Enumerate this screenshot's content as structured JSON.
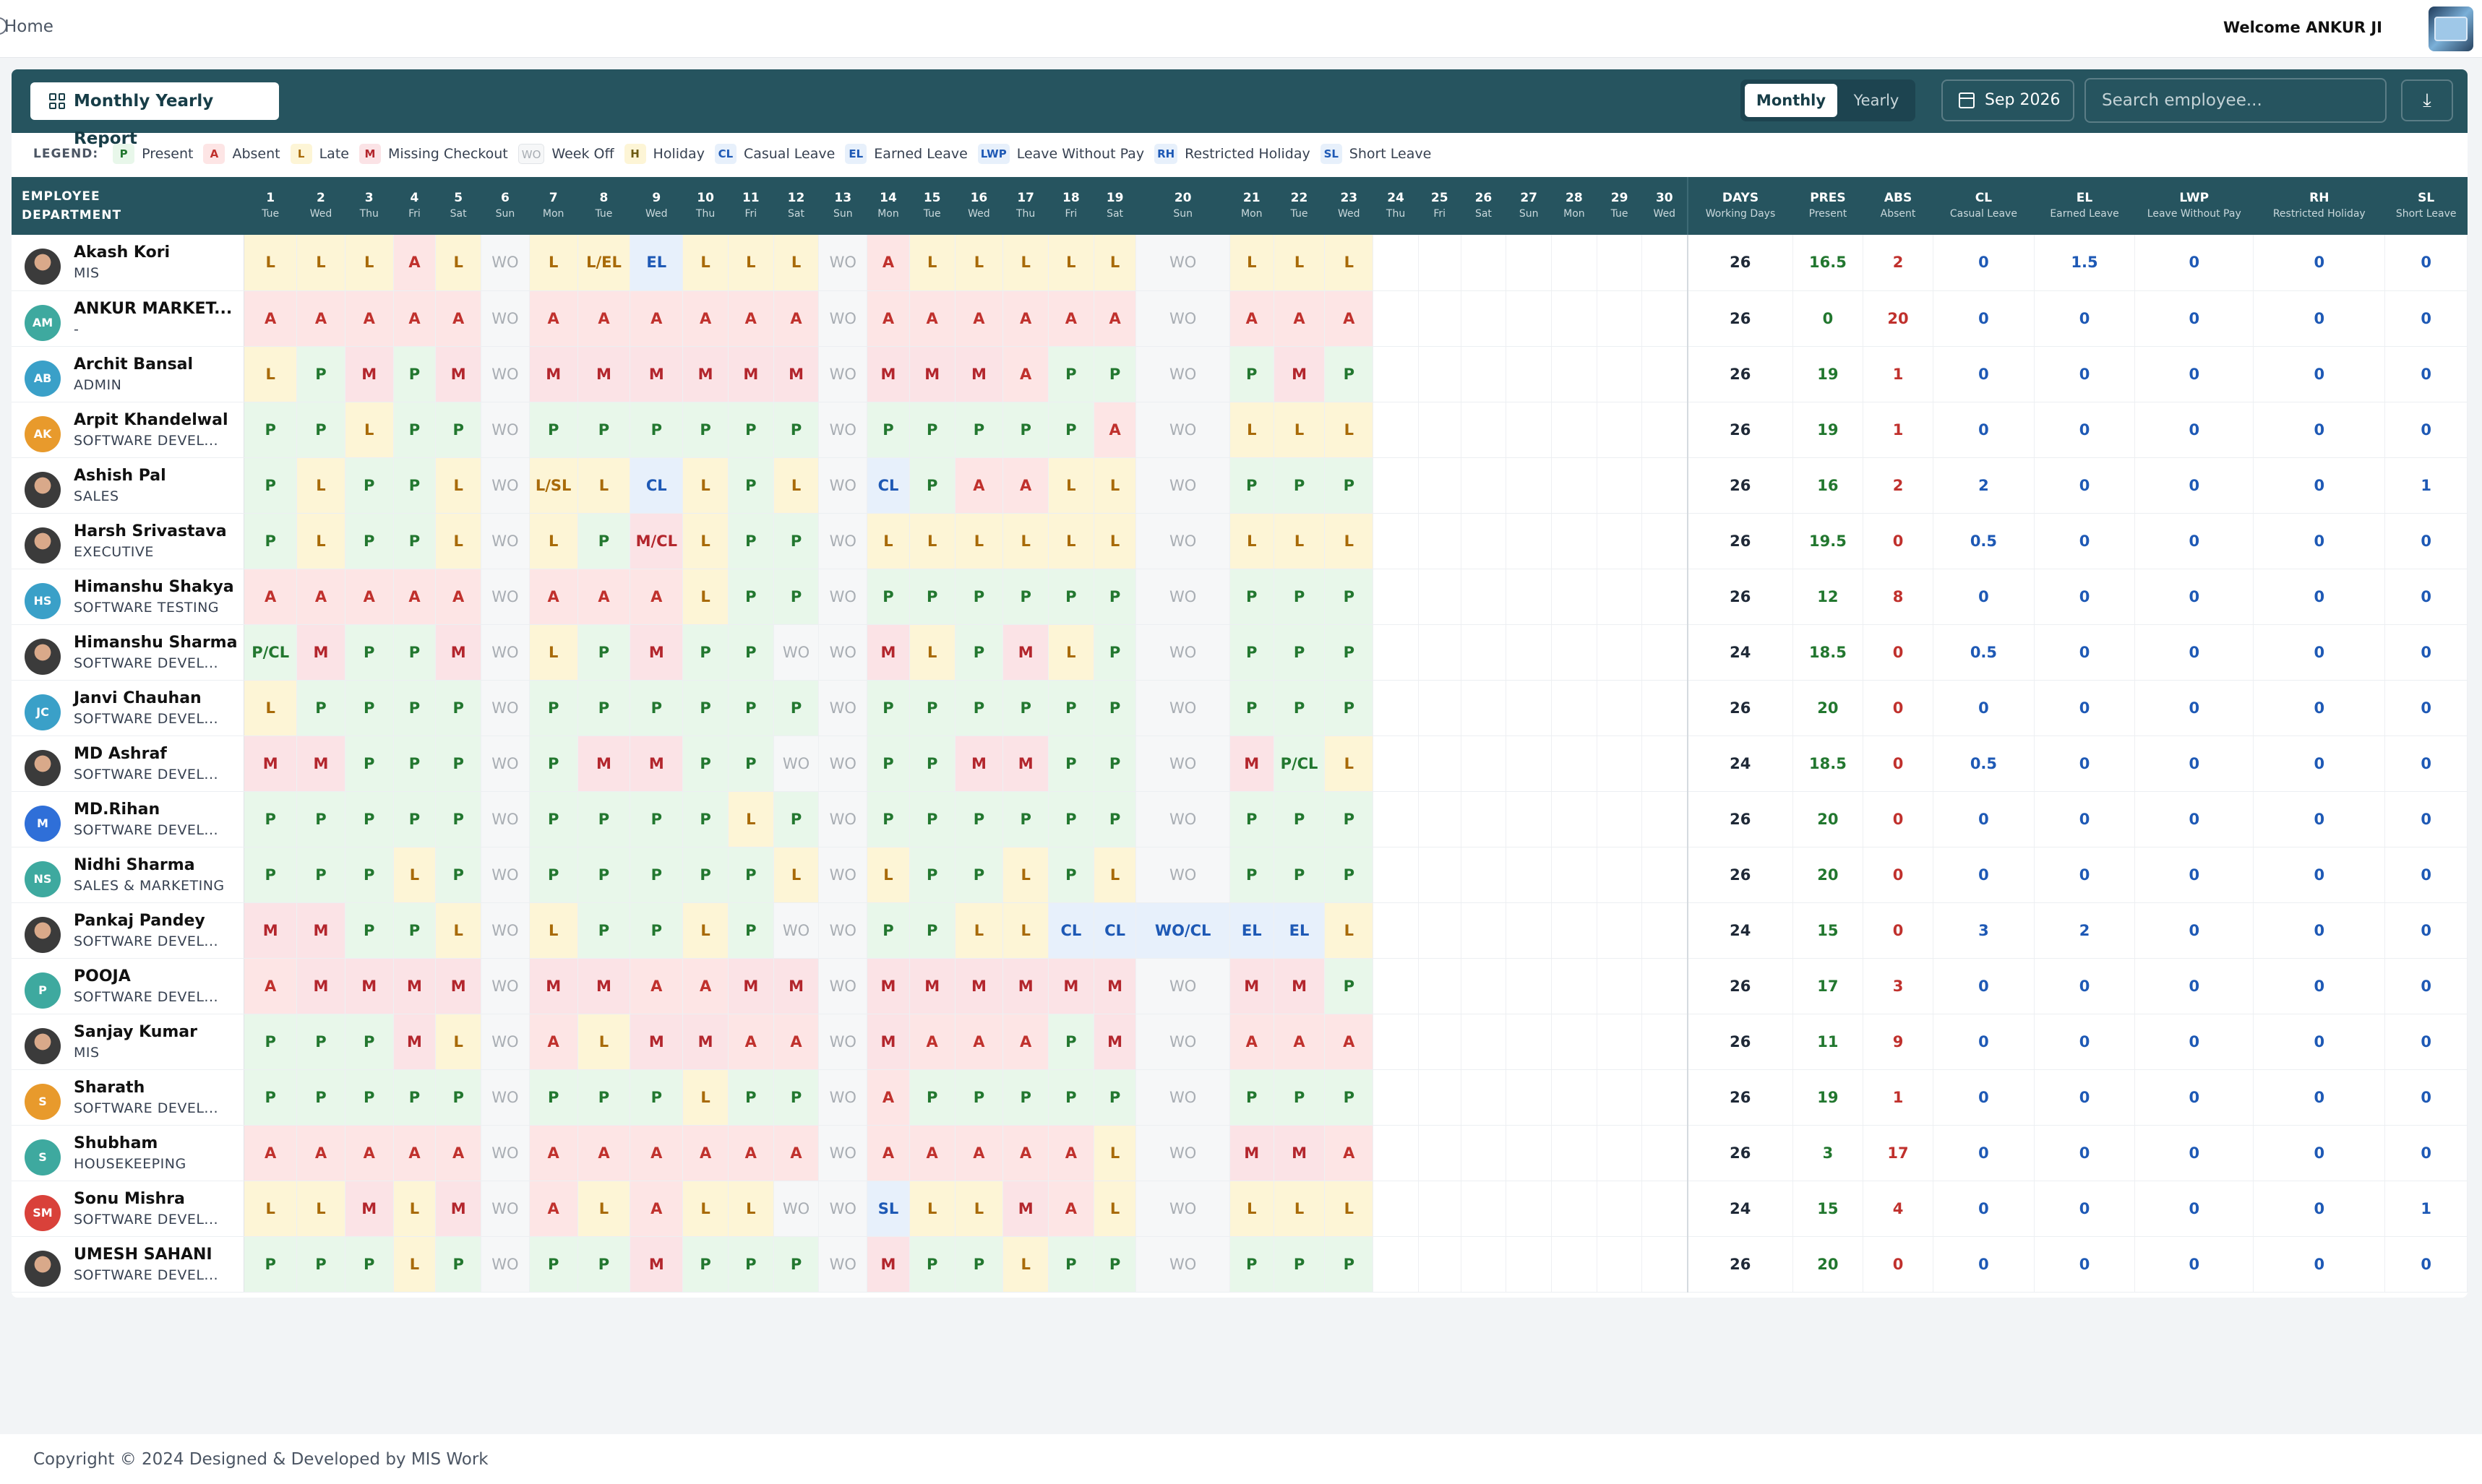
{
  "topbar": {
    "home_label": "Home",
    "welcome": "Welcome ANKUR JI"
  },
  "toolbar": {
    "title": "Monthly Yearly Report",
    "monthly": "Monthly",
    "yearly": "Yearly",
    "date": "Sep 2026",
    "search_placeholder": "Search employee...",
    "download_icon": "download-icon"
  },
  "legend": {
    "title": "LEGEND:",
    "items": [
      {
        "code": "P",
        "label": "Present"
      },
      {
        "code": "A",
        "label": "Absent"
      },
      {
        "code": "L",
        "label": "Late"
      },
      {
        "code": "M",
        "label": "Missing Checkout"
      },
      {
        "code": "WO",
        "label": "Week Off"
      },
      {
        "code": "H",
        "label": "Holiday"
      },
      {
        "code": "CL",
        "label": "Casual Leave"
      },
      {
        "code": "EL",
        "label": "Earned Leave"
      },
      {
        "code": "LWP",
        "label": "Leave Without Pay"
      },
      {
        "code": "RH",
        "label": "Restricted Holiday"
      },
      {
        "code": "SL",
        "label": "Short Leave"
      }
    ]
  },
  "table": {
    "employee_header": "EMPLOYEE",
    "department_header": "DEPARTMENT",
    "days": [
      [
        "1",
        "Tue"
      ],
      [
        "2",
        "Wed"
      ],
      [
        "3",
        "Thu"
      ],
      [
        "4",
        "Fri"
      ],
      [
        "5",
        "Sat"
      ],
      [
        "6",
        "Sun"
      ],
      [
        "7",
        "Mon"
      ],
      [
        "8",
        "Tue"
      ],
      [
        "9",
        "Wed"
      ],
      [
        "10",
        "Thu"
      ],
      [
        "11",
        "Fri"
      ],
      [
        "12",
        "Sat"
      ],
      [
        "13",
        "Sun"
      ],
      [
        "14",
        "Mon"
      ],
      [
        "15",
        "Tue"
      ],
      [
        "16",
        "Wed"
      ],
      [
        "17",
        "Thu"
      ],
      [
        "18",
        "Fri"
      ],
      [
        "19",
        "Sat"
      ],
      [
        "20",
        "Sun"
      ],
      [
        "21",
        "Mon"
      ],
      [
        "22",
        "Tue"
      ],
      [
        "23",
        "Wed"
      ],
      [
        "24",
        "Thu"
      ],
      [
        "25",
        "Fri"
      ],
      [
        "26",
        "Sat"
      ],
      [
        "27",
        "Sun"
      ],
      [
        "28",
        "Mon"
      ],
      [
        "29",
        "Tue"
      ],
      [
        "30",
        "Wed"
      ]
    ],
    "summary_headers": [
      [
        "DAYS",
        "Working Days"
      ],
      [
        "PRES",
        "Present"
      ],
      [
        "ABS",
        "Absent"
      ],
      [
        "CL",
        "Casual Leave"
      ],
      [
        "EL",
        "Earned Leave"
      ],
      [
        "LWP",
        "Leave Without Pay"
      ],
      [
        "RH",
        "Restricted Holiday"
      ],
      [
        "SL",
        "Short Leave"
      ]
    ],
    "rows": [
      {
        "name": "Akash Kori",
        "dept": "MIS",
        "initials": "",
        "avatar_color": "photo",
        "days": [
          "L",
          "L",
          "L",
          "A",
          "L",
          "WO",
          "L",
          "L/EL",
          "EL",
          "L",
          "L",
          "L",
          "WO",
          "A",
          "L",
          "L",
          "L",
          "L",
          "L",
          "WO",
          "L",
          "L",
          "L"
        ],
        "summary": [
          "26",
          "16.5",
          "2",
          "0",
          "1.5",
          "0",
          "0",
          "0"
        ]
      },
      {
        "name": "ANKUR MARKET...",
        "dept": "-",
        "initials": "AM",
        "avatar_color": "#3ea99f",
        "days": [
          "A",
          "A",
          "A",
          "A",
          "A",
          "WO",
          "A",
          "A",
          "A",
          "A",
          "A",
          "A",
          "WO",
          "A",
          "A",
          "A",
          "A",
          "A",
          "A",
          "WO",
          "A",
          "A",
          "A"
        ],
        "summary": [
          "26",
          "0",
          "20",
          "0",
          "0",
          "0",
          "0",
          "0"
        ]
      },
      {
        "name": "Archit Bansal",
        "dept": "ADMIN",
        "initials": "AB",
        "avatar_color": "#3aa0c8",
        "days": [
          "L",
          "P",
          "M",
          "P",
          "M",
          "WO",
          "M",
          "M",
          "M",
          "M",
          "M",
          "M",
          "WO",
          "M",
          "M",
          "M",
          "A",
          "P",
          "P",
          "WO",
          "P",
          "M",
          "P"
        ],
        "summary": [
          "26",
          "19",
          "1",
          "0",
          "0",
          "0",
          "0",
          "0"
        ]
      },
      {
        "name": "Arpit Khandelwal",
        "dept": "SOFTWARE DEVEL...",
        "initials": "AK",
        "avatar_color": "#e89a2c",
        "days": [
          "P",
          "P",
          "L",
          "P",
          "P",
          "WO",
          "P",
          "P",
          "P",
          "P",
          "P",
          "P",
          "WO",
          "P",
          "P",
          "P",
          "P",
          "P",
          "A",
          "WO",
          "L",
          "L",
          "L"
        ],
        "summary": [
          "26",
          "19",
          "1",
          "0",
          "0",
          "0",
          "0",
          "0"
        ]
      },
      {
        "name": "Ashish Pal",
        "dept": "SALES",
        "initials": "",
        "avatar_color": "photo",
        "days": [
          "P",
          "L",
          "P",
          "P",
          "L",
          "WO",
          "L/SL",
          "L",
          "CL",
          "L",
          "P",
          "L",
          "WO",
          "CL",
          "P",
          "A",
          "A",
          "L",
          "L",
          "WO",
          "P",
          "P",
          "P"
        ],
        "summary": [
          "26",
          "16",
          "2",
          "2",
          "0",
          "0",
          "0",
          "1"
        ]
      },
      {
        "name": "Harsh Srivastava",
        "dept": "EXECUTIVE",
        "initials": "",
        "avatar_color": "photo",
        "days": [
          "P",
          "L",
          "P",
          "P",
          "L",
          "WO",
          "L",
          "P",
          "M/CL",
          "L",
          "P",
          "P",
          "WO",
          "L",
          "L",
          "L",
          "L",
          "L",
          "L",
          "WO",
          "L",
          "L",
          "L"
        ],
        "summary": [
          "26",
          "19.5",
          "0",
          "0.5",
          "0",
          "0",
          "0",
          "0"
        ]
      },
      {
        "name": "Himanshu Shakya",
        "dept": "SOFTWARE TESTING",
        "initials": "HS",
        "avatar_color": "#3aa0c8",
        "days": [
          "A",
          "A",
          "A",
          "A",
          "A",
          "WO",
          "A",
          "A",
          "A",
          "L",
          "P",
          "P",
          "WO",
          "P",
          "P",
          "P",
          "P",
          "P",
          "P",
          "WO",
          "P",
          "P",
          "P"
        ],
        "summary": [
          "26",
          "12",
          "8",
          "0",
          "0",
          "0",
          "0",
          "0"
        ]
      },
      {
        "name": "Himanshu Sharma",
        "dept": "SOFTWARE DEVEL...",
        "initials": "",
        "avatar_color": "photo",
        "days": [
          "P/CL",
          "M",
          "P",
          "P",
          "M",
          "WO",
          "L",
          "P",
          "M",
          "P",
          "P",
          "WO",
          "WO",
          "M",
          "L",
          "P",
          "M",
          "L",
          "P",
          "WO",
          "P",
          "P",
          "P"
        ],
        "summary": [
          "24",
          "18.5",
          "0",
          "0.5",
          "0",
          "0",
          "0",
          "0"
        ]
      },
      {
        "name": "Janvi Chauhan",
        "dept": "SOFTWARE DEVEL...",
        "initials": "JC",
        "avatar_color": "#3aa0c8",
        "days": [
          "L",
          "P",
          "P",
          "P",
          "P",
          "WO",
          "P",
          "P",
          "P",
          "P",
          "P",
          "P",
          "WO",
          "P",
          "P",
          "P",
          "P",
          "P",
          "P",
          "WO",
          "P",
          "P",
          "P"
        ],
        "summary": [
          "26",
          "20",
          "0",
          "0",
          "0",
          "0",
          "0",
          "0"
        ]
      },
      {
        "name": "MD Ashraf",
        "dept": "SOFTWARE DEVEL...",
        "initials": "",
        "avatar_color": "photo",
        "days": [
          "M",
          "M",
          "P",
          "P",
          "P",
          "WO",
          "P",
          "M",
          "M",
          "P",
          "P",
          "WO",
          "WO",
          "P",
          "P",
          "M",
          "M",
          "P",
          "P",
          "WO",
          "M",
          "P/CL",
          "L"
        ],
        "summary": [
          "24",
          "18.5",
          "0",
          "0.5",
          "0",
          "0",
          "0",
          "0"
        ]
      },
      {
        "name": "MD.Rihan",
        "dept": "SOFTWARE DEVEL...",
        "initials": "M",
        "avatar_color": "#2f6fd8",
        "days": [
          "P",
          "P",
          "P",
          "P",
          "P",
          "WO",
          "P",
          "P",
          "P",
          "P",
          "L",
          "P",
          "WO",
          "P",
          "P",
          "P",
          "P",
          "P",
          "P",
          "WO",
          "P",
          "P",
          "P"
        ],
        "summary": [
          "26",
          "20",
          "0",
          "0",
          "0",
          "0",
          "0",
          "0"
        ]
      },
      {
        "name": "Nidhi Sharma",
        "dept": "SALES & MARKETING",
        "initials": "NS",
        "avatar_color": "#3ea99f",
        "days": [
          "P",
          "P",
          "P",
          "L",
          "P",
          "WO",
          "P",
          "P",
          "P",
          "P",
          "P",
          "L",
          "WO",
          "L",
          "P",
          "P",
          "L",
          "P",
          "L",
          "WO",
          "P",
          "P",
          "P"
        ],
        "summary": [
          "26",
          "20",
          "0",
          "0",
          "0",
          "0",
          "0",
          "0"
        ]
      },
      {
        "name": "Pankaj Pandey",
        "dept": "SOFTWARE DEVEL...",
        "initials": "",
        "avatar_color": "photo",
        "days": [
          "M",
          "M",
          "P",
          "P",
          "L",
          "WO",
          "L",
          "P",
          "P",
          "L",
          "P",
          "WO",
          "WO",
          "P",
          "P",
          "L",
          "L",
          "CL",
          "CL",
          "WO/CL",
          "EL",
          "EL",
          "L"
        ],
        "summary": [
          "24",
          "15",
          "0",
          "3",
          "2",
          "0",
          "0",
          "0"
        ]
      },
      {
        "name": "POOJA",
        "dept": "SOFTWARE DEVEL...",
        "initials": "P",
        "avatar_color": "#3ea99f",
        "days": [
          "A",
          "M",
          "M",
          "M",
          "M",
          "WO",
          "M",
          "M",
          "A",
          "A",
          "M",
          "M",
          "WO",
          "M",
          "M",
          "M",
          "M",
          "M",
          "M",
          "WO",
          "M",
          "M",
          "P"
        ],
        "summary": [
          "26",
          "17",
          "3",
          "0",
          "0",
          "0",
          "0",
          "0"
        ]
      },
      {
        "name": "Sanjay Kumar",
        "dept": "MIS",
        "initials": "",
        "avatar_color": "photo",
        "days": [
          "P",
          "P",
          "P",
          "M",
          "L",
          "WO",
          "A",
          "L",
          "M",
          "M",
          "A",
          "A",
          "WO",
          "M",
          "A",
          "A",
          "A",
          "P",
          "M",
          "WO",
          "A",
          "A",
          "A"
        ],
        "summary": [
          "26",
          "11",
          "9",
          "0",
          "0",
          "0",
          "0",
          "0"
        ]
      },
      {
        "name": "Sharath",
        "dept": "SOFTWARE DEVEL...",
        "initials": "S",
        "avatar_color": "#e89a2c",
        "days": [
          "P",
          "P",
          "P",
          "P",
          "P",
          "WO",
          "P",
          "P",
          "P",
          "L",
          "P",
          "P",
          "WO",
          "A",
          "P",
          "P",
          "P",
          "P",
          "P",
          "WO",
          "P",
          "P",
          "P"
        ],
        "summary": [
          "26",
          "19",
          "1",
          "0",
          "0",
          "0",
          "0",
          "0"
        ]
      },
      {
        "name": "Shubham",
        "dept": "HOUSEKEEPING",
        "initials": "S",
        "avatar_color": "#3ea99f",
        "days": [
          "A",
          "A",
          "A",
          "A",
          "A",
          "WO",
          "A",
          "A",
          "A",
          "A",
          "A",
          "A",
          "WO",
          "A",
          "A",
          "A",
          "A",
          "A",
          "L",
          "WO",
          "M",
          "M",
          "A"
        ],
        "summary": [
          "26",
          "3",
          "17",
          "0",
          "0",
          "0",
          "0",
          "0"
        ]
      },
      {
        "name": "Sonu Mishra",
        "dept": "SOFTWARE DEVEL...",
        "initials": "SM",
        "avatar_color": "#d9413a",
        "days": [
          "L",
          "L",
          "M",
          "L",
          "M",
          "WO",
          "A",
          "L",
          "A",
          "L",
          "L",
          "WO",
          "WO",
          "SL",
          "L",
          "L",
          "M",
          "A",
          "L",
          "WO",
          "L",
          "L",
          "L"
        ],
        "summary": [
          "24",
          "15",
          "4",
          "0",
          "0",
          "0",
          "0",
          "1"
        ]
      },
      {
        "name": "UMESH SAHANI",
        "dept": "SOFTWARE DEVEL...",
        "initials": "",
        "avatar_color": "photo",
        "days": [
          "P",
          "P",
          "P",
          "L",
          "P",
          "WO",
          "P",
          "P",
          "M",
          "P",
          "P",
          "P",
          "WO",
          "M",
          "P",
          "P",
          "L",
          "P",
          "P",
          "WO",
          "P",
          "P",
          "P"
        ],
        "summary": [
          "26",
          "20",
          "0",
          "0",
          "0",
          "0",
          "0",
          "0"
        ]
      }
    ]
  },
  "footer": {
    "text": "Copyright © 2024 Designed & Developed by  MIS Work"
  }
}
